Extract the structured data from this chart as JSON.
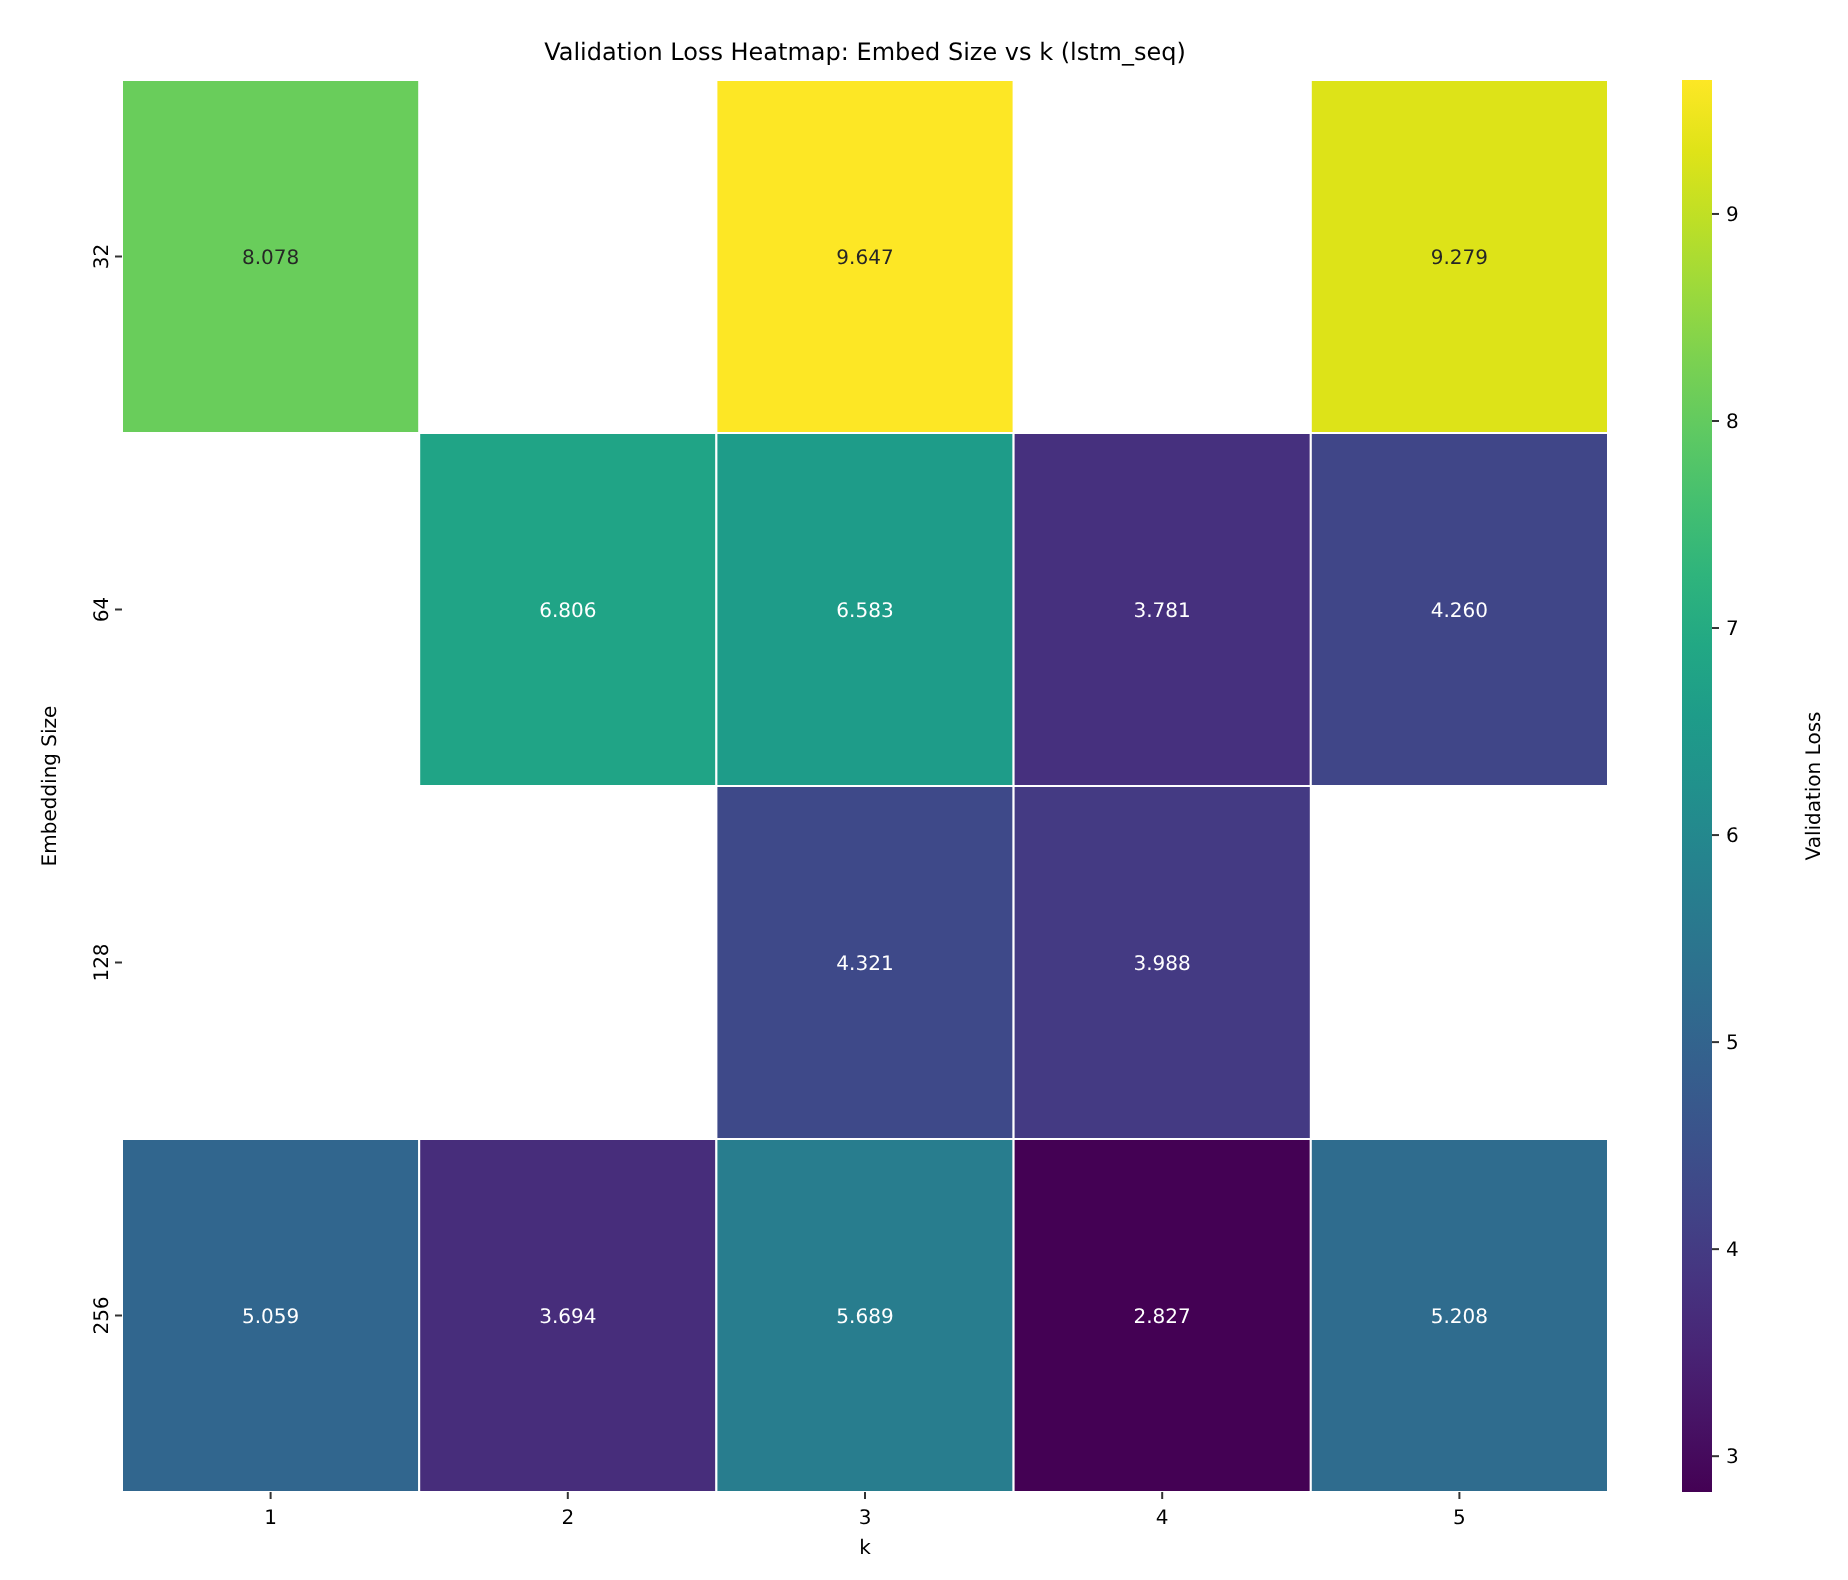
{
  "chart_data": {
    "type": "heatmap",
    "title": "Validation Loss Heatmap: Embed Size vs k (lstm_seq)",
    "xlabel": "k",
    "ylabel": "Embedding Size",
    "clabel": "Validation Loss",
    "categories": [
      "1",
      "2",
      "3",
      "4",
      "5"
    ],
    "y_categories": [
      "32",
      "64",
      "128",
      "256"
    ],
    "cells": [
      [
        8.078,
        null,
        9.647,
        null,
        9.279
      ],
      [
        null,
        6.806,
        6.583,
        3.781,
        4.26
      ],
      [
        null,
        null,
        4.321,
        3.988,
        null
      ],
      [
        5.059,
        3.694,
        5.689,
        2.827,
        5.208
      ]
    ],
    "cell_labels": [
      [
        "8.078",
        null,
        "9.647",
        null,
        "9.279"
      ],
      [
        null,
        "6.806",
        "6.583",
        "3.781",
        "4.260"
      ],
      [
        null,
        null,
        "4.321",
        "3.988",
        null
      ],
      [
        "5.059",
        "3.694",
        "5.689",
        "2.827",
        "5.208"
      ]
    ],
    "clim": [
      2.827,
      9.647
    ],
    "cticks": [
      3,
      4,
      5,
      6,
      7,
      8,
      9
    ]
  }
}
